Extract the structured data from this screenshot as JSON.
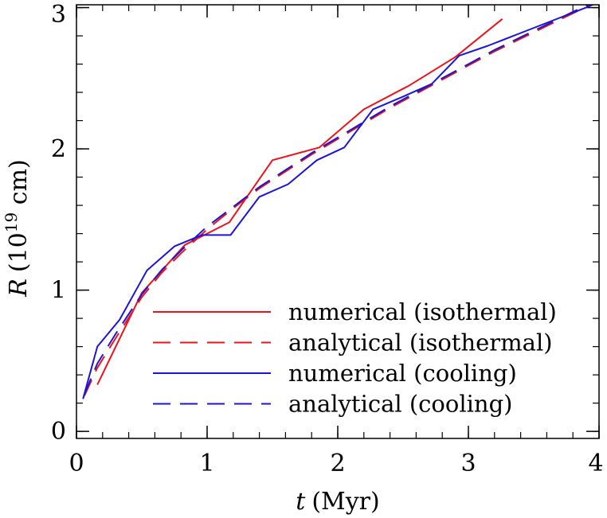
{
  "chart_data": {
    "type": "line",
    "title": "",
    "xlabel": {
      "symbol": "t",
      "unit": "(Myr)"
    },
    "ylabel": {
      "symbol": "R",
      "unit_prefix": "(10",
      "unit_exp": "19",
      "unit_suffix": " cm)"
    },
    "xlim": [
      0,
      4
    ],
    "ylim": [
      -0.05,
      3.02
    ],
    "x_ticks": [
      {
        "value": 0,
        "label": "0"
      },
      {
        "value": 1,
        "label": "1"
      },
      {
        "value": 2,
        "label": "2"
      },
      {
        "value": 3,
        "label": "3"
      },
      {
        "value": 4,
        "label": "4"
      }
    ],
    "y_ticks": [
      {
        "value": 0,
        "label": "0"
      },
      {
        "value": 1,
        "label": "1"
      },
      {
        "value": 2,
        "label": "2"
      },
      {
        "value": 3,
        "label": "3"
      }
    ],
    "x_minor_step": 0.2,
    "y_minor_step": 0.2,
    "grid": false,
    "legend_position": "bottom-right",
    "series": [
      {
        "name": "numerical (isothermal)",
        "color": "#e8141a",
        "dash": "solid",
        "x": [
          0.16,
          0.5,
          0.83,
          1.0,
          1.17,
          1.5,
          1.86,
          2.2,
          2.55,
          2.9,
          3.26
        ],
        "y": [
          0.33,
          0.98,
          1.32,
          1.4,
          1.48,
          1.92,
          2.01,
          2.28,
          2.45,
          2.65,
          2.92
        ]
      },
      {
        "name": "analytical (isothermal)",
        "color": "#e8141a",
        "dash": "dashed",
        "x": [
          0.06,
          0.16,
          0.3,
          0.5,
          0.65,
          0.8,
          1.0,
          1.2,
          1.4,
          1.6,
          1.8,
          2.0,
          2.2,
          2.4,
          2.6,
          2.8,
          3.0,
          3.2,
          3.4,
          3.6,
          3.8,
          4.0
        ],
        "y": [
          0.25,
          0.45,
          0.66,
          0.95,
          1.12,
          1.26,
          1.43,
          1.58,
          1.72,
          1.84,
          1.96,
          2.07,
          2.18,
          2.29,
          2.39,
          2.49,
          2.59,
          2.69,
          2.78,
          2.87,
          2.96,
          3.05
        ]
      },
      {
        "name": "numerical (cooling)",
        "color": "#1c14d6",
        "dash": "solid",
        "x": [
          0.05,
          0.16,
          0.33,
          0.54,
          0.75,
          0.96,
          1.18,
          1.4,
          1.62,
          1.84,
          2.05,
          2.27,
          2.5,
          2.72,
          2.93,
          3.15,
          3.4,
          3.65,
          3.9,
          4.0
        ],
        "y": [
          0.23,
          0.6,
          0.79,
          1.14,
          1.31,
          1.39,
          1.39,
          1.66,
          1.75,
          1.92,
          2.01,
          2.28,
          2.37,
          2.46,
          2.66,
          2.73,
          2.82,
          2.91,
          3.0,
          3.04
        ]
      },
      {
        "name": "analytical (cooling)",
        "color": "#1c14d6",
        "dash": "dashed",
        "x": [
          0.06,
          0.16,
          0.3,
          0.5,
          0.65,
          0.8,
          1.0,
          1.2,
          1.4,
          1.6,
          1.8,
          2.0,
          2.2,
          2.4,
          2.6,
          2.8,
          3.0,
          3.2,
          3.4,
          3.6,
          3.8,
          4.0
        ],
        "y": [
          0.26,
          0.48,
          0.69,
          0.97,
          1.14,
          1.28,
          1.45,
          1.59,
          1.73,
          1.85,
          1.97,
          2.08,
          2.19,
          2.3,
          2.4,
          2.5,
          2.6,
          2.7,
          2.79,
          2.88,
          2.97,
          3.06
        ]
      }
    ]
  }
}
